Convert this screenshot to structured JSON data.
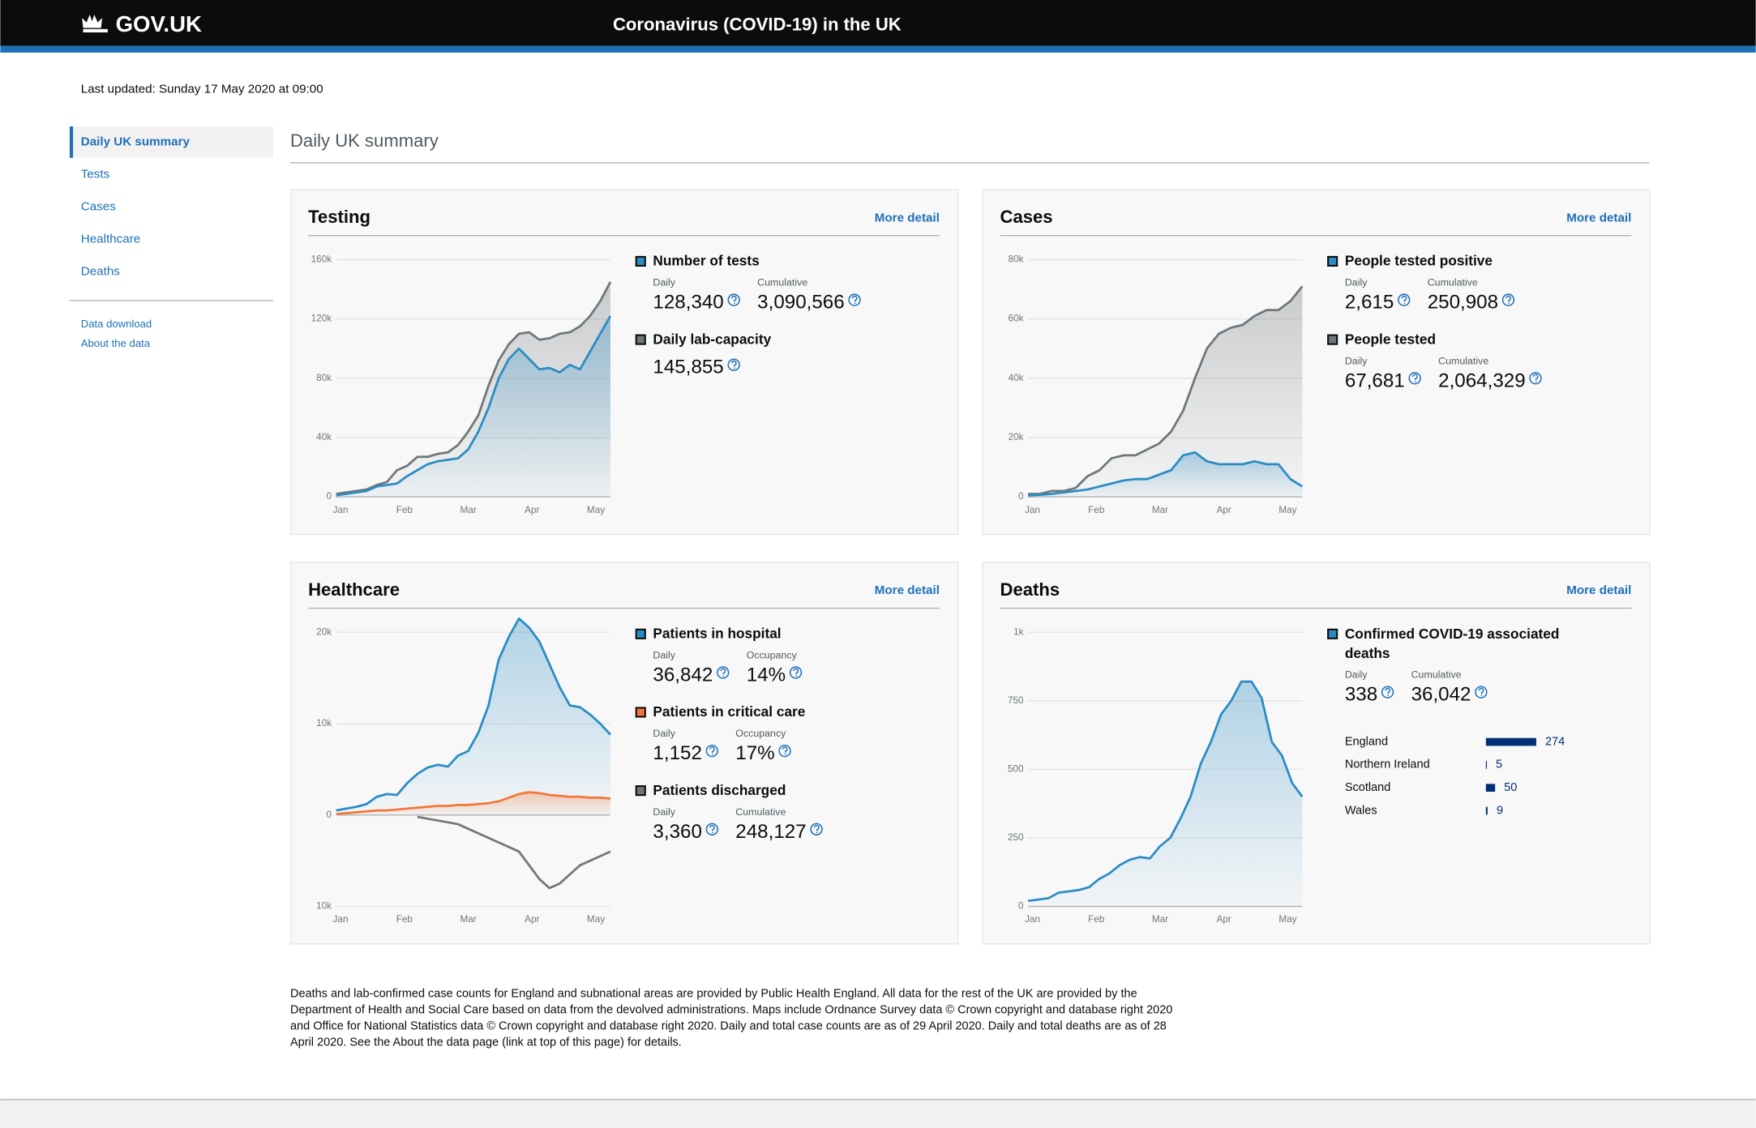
{
  "header": {
    "logo": "GOV.UK",
    "title": "Coronavirus (COVID-19) in the UK"
  },
  "last_updated": "Last updated: Sunday 17 May 2020 at 09:00",
  "nav": {
    "items": [
      "Daily UK summary",
      "Tests",
      "Cases",
      "Healthcare",
      "Deaths"
    ],
    "links": [
      "Data download",
      "About the data"
    ]
  },
  "page_title": "Daily UK summary",
  "cards": [
    {
      "title": "Testing",
      "link": "More detail",
      "chart": {
        "type": "line",
        "xticks": [
          "Jan",
          "Feb",
          "Mar",
          "Apr",
          "May"
        ],
        "ylim": [
          0,
          160000
        ],
        "yticks": [
          0,
          {
            "value": 40000,
            "label": "40k"
          },
          {
            "value": 80000,
            "label": "80k"
          },
          {
            "value": 120000,
            "label": "120k"
          },
          {
            "value": 160000,
            "label": "160k"
          }
        ],
        "grid": true,
        "series": [
          {
            "color": "#6f777b",
            "area": true,
            "values": [
              2000,
              3000,
              4000,
              5000,
              8000,
              10000,
              18000,
              21000,
              27000,
              27000,
              29000,
              30000,
              35000,
              44000,
              55000,
              75000,
              92000,
              103000,
              110000,
              111000,
              106000,
              107000,
              110000,
              111000,
              115000,
              122000,
              132000,
              145000
            ]
          },
          {
            "color": "#2b8cc4",
            "area": true,
            "values": [
              1000,
              2000,
              3000,
              4000,
              7000,
              8000,
              9000,
              14000,
              18000,
              22000,
              24000,
              25000,
              26000,
              32000,
              44000,
              60000,
              80000,
              93000,
              100000,
              93000,
              86000,
              87000,
              84000,
              89000,
              86000,
              98000,
              110000,
              122000
            ]
          }
        ]
      },
      "stats": [
        {
          "name": "Number of tests",
          "color": "#2b8cc4",
          "figures": [
            {
              "label": "Daily",
              "value": "128,340"
            },
            {
              "label": "Cumulative",
              "value": "3,090,566"
            }
          ]
        },
        {
          "name": "Daily lab-capacity",
          "color": "#6f777b",
          "figures": [
            {
              "value": "145,855"
            }
          ]
        }
      ]
    },
    {
      "title": "Cases",
      "link": "More detail",
      "chart": {
        "type": "line",
        "xticks": [
          "Jan",
          "Feb",
          "Mar",
          "Apr",
          "May"
        ],
        "ylim": [
          0,
          80000
        ],
        "yticks": [
          0,
          {
            "value": 20000,
            "label": "20k"
          },
          {
            "value": 40000,
            "label": "40k"
          },
          {
            "value": 60000,
            "label": "60k"
          },
          {
            "value": 80000,
            "label": "80k"
          }
        ],
        "grid": true,
        "series": [
          {
            "color": "#6f777b",
            "area": true,
            "values": [
              1000,
              1000,
              2000,
              2000,
              3000,
              7000,
              9000,
              13000,
              14000,
              14000,
              16000,
              18000,
              22000,
              29000,
              40000,
              50000,
              55000,
              57000,
              58000,
              61000,
              63000,
              63000,
              66000,
              71000
            ]
          },
          {
            "color": "#2b8cc4",
            "area": true,
            "values": [
              500,
              700,
              1000,
              1500,
              2000,
              2500,
              3500,
              4500,
              5500,
              6000,
              6000,
              7500,
              9000,
              14000,
              15000,
              12000,
              11000,
              11000,
              11000,
              12000,
              11000,
              11000,
              6000,
              3500
            ]
          }
        ]
      },
      "stats": [
        {
          "name": "People tested positive",
          "color": "#2b8cc4",
          "figures": [
            {
              "label": "Daily",
              "value": "2,615"
            },
            {
              "label": "Cumulative",
              "value": "250,908"
            }
          ]
        },
        {
          "name": "People tested",
          "color": "#6f777b",
          "figures": [
            {
              "label": "Daily",
              "value": "67,681"
            },
            {
              "label": "Cumulative",
              "value": "2,064,329"
            }
          ]
        }
      ]
    },
    {
      "title": "Healthcare",
      "link": "More detail",
      "chart": {
        "type": "line",
        "xticks": [
          "Jan",
          "Feb",
          "Mar",
          "Apr",
          "May"
        ],
        "ylim": [
          -10000,
          20000
        ],
        "yticks": [
          {
            "value": -10000,
            "label": "10k"
          },
          0,
          {
            "value": 10000,
            "label": "10k"
          },
          {
            "value": 20000,
            "label": "20k"
          }
        ],
        "grid": true,
        "series": [
          {
            "color": "#2b8cc4",
            "area": true,
            "values": [
              500,
              700,
              900,
              1200,
              2000,
              2300,
              2200,
              3500,
              4500,
              5200,
              5500,
              5300,
              6500,
              7000,
              9000,
              12000,
              17000,
              19500,
              21500,
              20500,
              19000,
              16500,
              14000,
              12000,
              11800,
              11000,
              10000,
              8800
            ]
          },
          {
            "color": "#f47738",
            "area": true,
            "values": [
              100,
              200,
              300,
              400,
              500,
              500,
              600,
              700,
              800,
              900,
              1000,
              1000,
              1100,
              1100,
              1200,
              1300,
              1500,
              1900,
              2300,
              2500,
              2400,
              2200,
              2100,
              2000,
              2000,
              1900,
              1900,
              1800
            ]
          },
          {
            "color": "#6f777b",
            "area": false,
            "values": [
              null,
              null,
              null,
              null,
              null,
              null,
              null,
              null,
              -200,
              -400,
              -600,
              -800,
              -1000,
              -1500,
              -2000,
              -2500,
              -3000,
              -3500,
              -4000,
              -5500,
              -7000,
              -8000,
              -7500,
              -6500,
              -5500,
              -5000,
              -4500,
              -4000
            ]
          }
        ]
      },
      "stats": [
        {
          "name": "Patients in hospital",
          "color": "#2b8cc4",
          "figures": [
            {
              "label": "Daily",
              "value": "36,842"
            },
            {
              "label": "Occupancy",
              "value": "14%"
            }
          ]
        },
        {
          "name": "Patients in critical care",
          "color": "#f47738",
          "figures": [
            {
              "label": "Daily",
              "value": "1,152"
            },
            {
              "label": "Occupancy",
              "value": "17%"
            }
          ]
        },
        {
          "name": "Patients discharged",
          "color": "#6f777b",
          "figures": [
            {
              "label": "Daily",
              "value": "3,360"
            },
            {
              "label": "Cumulative",
              "value": "248,127"
            }
          ]
        }
      ]
    },
    {
      "title": "Deaths",
      "link": "More detail",
      "chart": {
        "type": "line",
        "xticks": [
          "Jan",
          "Feb",
          "Mar",
          "Apr",
          "May"
        ],
        "ylim": [
          0,
          1000
        ],
        "yticks": [
          0,
          250,
          500,
          750,
          {
            "value": 1000,
            "label": "1k"
          }
        ],
        "grid": true,
        "series": [
          {
            "color": "#2b8cc4",
            "area": true,
            "values": [
              20,
              25,
              30,
              50,
              55,
              60,
              70,
              100,
              120,
              150,
              170,
              180,
              175,
              220,
              250,
              320,
              400,
              520,
              600,
              700,
              750,
              820,
              820,
              760,
              600,
              550,
              450,
              400
            ]
          }
        ]
      },
      "stats": [
        {
          "name": "Confirmed COVID-19 associated deaths",
          "color": "#2b8cc4",
          "figures": [
            {
              "label": "Daily",
              "value": "338"
            },
            {
              "label": "Cumulative",
              "value": "36,042"
            }
          ]
        }
      ],
      "breakdown": {
        "type": "bar",
        "categories": [
          "England",
          "Northern Ireland",
          "Scotland",
          "Wales"
        ],
        "values": [
          274,
          5,
          50,
          9
        ],
        "color": "#003078"
      }
    }
  ],
  "footnote": "Deaths and lab-confirmed case counts for England and subnational areas are provided by Public Health England. All data for the rest of the UK are provided by the Department of Health and Social Care based on data from the devolved administrations. Maps include Ordnance Survey data © Crown copyright and database right 2020 and Office for National Statistics data © Crown copyright and database right 2020. Daily and total case counts are as of 29 April 2020. Daily and total deaths are as of 28 April 2020. See the About the data page (link at top of this page) for details."
}
